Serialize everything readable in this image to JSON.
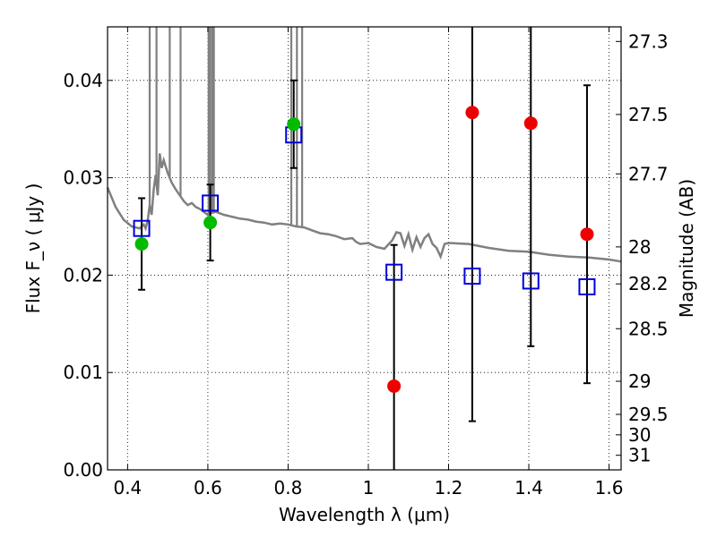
{
  "chart_data": {
    "type": "scatter",
    "xlabel": "Wavelength  λ (μm)",
    "ylabel": "Flux  F_ν  ( μJy )",
    "y2label": "Magnitude (AB)",
    "xlim": [
      0.35,
      1.63
    ],
    "ylim": [
      0.0,
      0.0455
    ],
    "x_ticks": [
      0.4,
      0.6,
      0.8,
      1.0,
      1.2,
      1.4,
      1.6
    ],
    "x_tick_labels": [
      "0.4",
      "0.6",
      "0.8",
      "1",
      "1.2",
      "1.4",
      "1.6"
    ],
    "y_ticks": [
      0.0,
      0.01,
      0.02,
      0.03,
      0.04
    ],
    "y_tick_labels": [
      "0.00",
      "0.01",
      "0.02",
      "0.03",
      "0.04"
    ],
    "mag_ticks": [
      {
        "label": "27.3",
        "flux": 0.044
      },
      {
        "label": "27.5",
        "flux": 0.0365
      },
      {
        "label": "27.7",
        "flux": 0.0304
      },
      {
        "label": "28",
        "flux": 0.0229
      },
      {
        "label": "28.2",
        "flux": 0.0191
      },
      {
        "label": "28.5",
        "flux": 0.0145
      },
      {
        "label": "29",
        "flux": 0.0091
      },
      {
        "label": "29.5",
        "flux": 0.0057
      },
      {
        "label": "30",
        "flux": 0.0036
      },
      {
        "label": "31",
        "flux": 0.0015
      }
    ],
    "grid": true,
    "colors": {
      "observed_green": "#00bb00",
      "observed_red": "#ee0000",
      "model_band": "#0000dd",
      "model_spectrum": "#808080",
      "errorbar": "#000000"
    },
    "series": [
      {
        "marker": "square-open",
        "x": [
          0.435,
          0.606,
          0.814,
          1.064,
          1.259,
          1.405,
          1.545
        ],
        "y": [
          0.0248,
          0.0274,
          0.0344,
          0.0203,
          0.0199,
          0.0194,
          0.0188
        ]
      },
      {
        "marker": "circle-green",
        "x": [
          0.435,
          0.606,
          0.814
        ],
        "y": [
          0.0232,
          0.0254,
          0.0355
        ],
        "yerr": [
          0.0047,
          0.0039,
          0.0045
        ]
      },
      {
        "marker": "circle-red",
        "x": [
          1.064,
          1.259,
          1.405,
          1.545
        ],
        "y": [
          0.0086,
          0.0367,
          0.0356,
          0.0242
        ],
        "yerr": [
          0.0145,
          0.0317,
          0.0229,
          0.0153
        ]
      },
      {
        "marker": "line",
        "x": [
          0.35,
          0.37,
          0.39,
          0.41,
          0.43,
          0.44,
          0.445,
          0.45,
          0.455,
          0.46,
          0.465,
          0.47,
          0.475,
          0.48,
          0.485,
          0.49,
          0.5,
          0.51,
          0.52,
          0.53,
          0.54,
          0.55,
          0.56,
          0.57,
          0.58,
          0.59,
          0.6,
          0.61,
          0.62,
          0.64,
          0.66,
          0.68,
          0.7,
          0.72,
          0.74,
          0.76,
          0.78,
          0.8,
          0.82,
          0.84,
          0.86,
          0.88,
          0.9,
          0.92,
          0.94,
          0.96,
          0.97,
          0.98,
          1.0,
          1.02,
          1.04,
          1.06,
          1.07,
          1.08,
          1.09,
          1.1,
          1.11,
          1.12,
          1.13,
          1.14,
          1.15,
          1.16,
          1.17,
          1.18,
          1.19,
          1.2,
          1.25,
          1.3,
          1.35,
          1.4,
          1.45,
          1.5,
          1.55,
          1.6,
          1.63
        ],
        "y": [
          0.029,
          0.027,
          0.0257,
          0.025,
          0.0248,
          0.0252,
          0.0248,
          0.0256,
          0.0272,
          0.0262,
          0.0288,
          0.0303,
          0.0282,
          0.0325,
          0.031,
          0.0318,
          0.0305,
          0.0295,
          0.0288,
          0.0282,
          0.0276,
          0.0272,
          0.0274,
          0.027,
          0.0268,
          0.0265,
          0.0262,
          0.0264,
          0.0265,
          0.0262,
          0.026,
          0.0258,
          0.0257,
          0.0255,
          0.0254,
          0.0252,
          0.0253,
          0.0252,
          0.025,
          0.0249,
          0.0246,
          0.0243,
          0.0242,
          0.024,
          0.0237,
          0.0238,
          0.0234,
          0.0232,
          0.0233,
          0.0229,
          0.0227,
          0.0236,
          0.0244,
          0.0243,
          0.023,
          0.0242,
          0.0226,
          0.0239,
          0.0229,
          0.0238,
          0.0242,
          0.0232,
          0.0228,
          0.0219,
          0.0232,
          0.0233,
          0.0232,
          0.0228,
          0.0225,
          0.0224,
          0.0221,
          0.0219,
          0.0218,
          0.0216,
          0.0214
        ]
      },
      {
        "marker": "spikes",
        "x": [
          0.455,
          0.472,
          0.505,
          0.532,
          0.602,
          0.606,
          0.611,
          0.615,
          0.808,
          0.822,
          0.835
        ],
        "y": [
          0.0455,
          0.0455,
          0.0455,
          0.0455,
          0.0455,
          0.0455,
          0.0455,
          0.0455,
          0.0455,
          0.0455,
          0.0455
        ]
      }
    ]
  }
}
